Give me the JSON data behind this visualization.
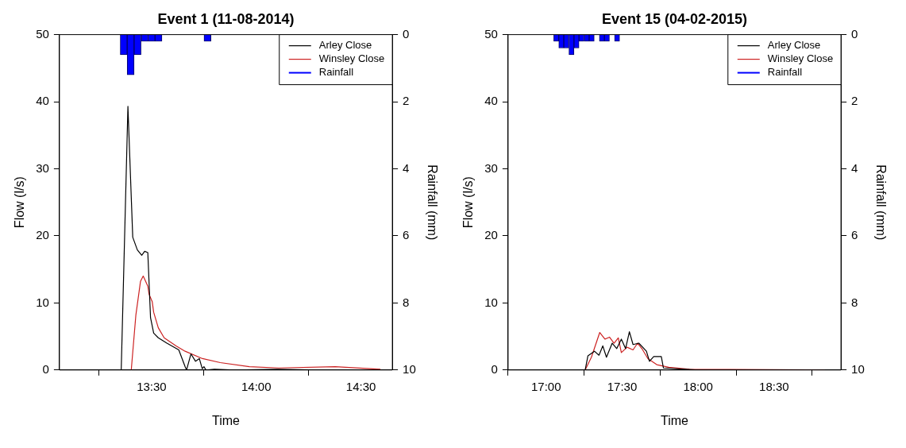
{
  "chart_data": [
    {
      "type": "line",
      "title": "Event 1 (11-08-2014)",
      "xlabel": "Time",
      "ylabel": "Flow (l/s)",
      "y2label": "Rainfall (mm)",
      "xlim": [
        13.06,
        14.65
      ],
      "xticks": [
        {
          "value": 13.5,
          "label": "13:30"
        },
        {
          "value": 14,
          "label": "14:00"
        },
        {
          "value": 14.5,
          "label": "14:30"
        }
      ],
      "ylim": [
        0,
        50
      ],
      "yticks": [
        0,
        10,
        20,
        30,
        40,
        50
      ],
      "y2lim": [
        10,
        0
      ],
      "y2ticks": [
        0,
        2,
        4,
        6,
        8,
        10
      ],
      "grid": false,
      "legend": "top right",
      "marker": "none",
      "line_style": "solid",
      "series": [
        {
          "name": "Arley Close",
          "color": "#000000",
          "x": [
            13.355,
            13.387,
            13.41,
            13.432,
            13.453,
            13.467,
            13.482,
            13.495,
            13.51,
            13.532,
            13.573,
            13.63,
            13.66,
            13.667,
            13.688,
            13.71,
            13.728,
            13.742,
            13.75,
            13.76,
            13.8,
            13.9,
            14.1,
            14.3,
            14.593
          ],
          "values": [
            0,
            39.3,
            19.8,
            17.9,
            17.1,
            17.7,
            17.5,
            7.8,
            5.5,
            4.8,
            4.0,
            3.0,
            0.5,
            0,
            2.4,
            1.3,
            1.7,
            0.2,
            0.5,
            0,
            0.1,
            0,
            0.1,
            0,
            0
          ]
        },
        {
          "name": "Winsley Close",
          "color": "#cc2222",
          "x": [
            13.403,
            13.425,
            13.447,
            13.46,
            13.482,
            13.488,
            13.503,
            13.51,
            13.532,
            13.56,
            13.617,
            13.66,
            13.743,
            13.828,
            13.967,
            14.108,
            14.377,
            14.593
          ],
          "values": [
            0,
            8.2,
            13.2,
            14.0,
            12.5,
            11.3,
            10.2,
            8.6,
            6.3,
            4.8,
            3.6,
            2.8,
            1.7,
            1.1,
            0.5,
            0.3,
            0.5,
            0.1
          ]
        },
        {
          "name": "Rainfall",
          "type": "bar",
          "axis": "y2",
          "color": "#0000ff",
          "x": [
            13.367,
            13.4,
            13.433,
            13.467,
            13.5,
            13.533,
            13.767
          ],
          "values": [
            0.6,
            1.2,
            0.6,
            0.2,
            0.2,
            0.2,
            0.2
          ]
        }
      ]
    },
    {
      "type": "line",
      "title": "Event 15 (04-02-2015)",
      "xlabel": "Time",
      "ylabel": "Flow (l/s)",
      "y2label": "Rainfall (mm)",
      "xlim": [
        16.75,
        18.94
      ],
      "xticks": [
        {
          "value": 17,
          "label": "17:00"
        },
        {
          "value": 17.5,
          "label": "17:30"
        },
        {
          "value": 18,
          "label": "18:00"
        },
        {
          "value": 18.5,
          "label": "18:30"
        }
      ],
      "ylim": [
        0,
        50
      ],
      "yticks": [
        0,
        10,
        20,
        30,
        40,
        50
      ],
      "y2lim": [
        10,
        0
      ],
      "y2ticks": [
        0,
        2,
        4,
        6,
        8,
        10
      ],
      "grid": false,
      "legend": "top right",
      "marker": "none",
      "line_style": "solid",
      "series": [
        {
          "name": "Arley Close",
          "color": "#000000",
          "x": [
            17.257,
            17.275,
            17.318,
            17.348,
            17.373,
            17.397,
            17.435,
            17.465,
            17.495,
            17.523,
            17.548,
            17.572,
            17.61,
            17.66,
            17.68,
            17.708,
            17.758,
            17.772,
            18.002,
            18.833
          ],
          "values": [
            0,
            2.1,
            2.8,
            2.2,
            3.6,
            1.9,
            4.0,
            3.2,
            4.6,
            3.2,
            5.7,
            3.8,
            4.0,
            2.8,
            1.3,
            2.0,
            2.0,
            0.3,
            0,
            0
          ]
        },
        {
          "name": "Winsley Close",
          "color": "#cc2222",
          "x": [
            17.257,
            17.298,
            17.353,
            17.387,
            17.417,
            17.447,
            17.475,
            17.495,
            17.533,
            17.572,
            17.602,
            17.63,
            17.67,
            17.728,
            17.807,
            17.943,
            18.833
          ],
          "values": [
            0,
            1.9,
            5.6,
            4.6,
            4.9,
            4.0,
            4.8,
            2.6,
            3.4,
            3.0,
            4.0,
            3.2,
            1.7,
            0.8,
            0.4,
            0.1,
            0
          ]
        },
        {
          "name": "Rainfall",
          "type": "bar",
          "axis": "y2",
          "color": "#0000ff",
          "x": [
            17.067,
            17.1,
            17.133,
            17.167,
            17.2,
            17.233,
            17.267,
            17.3,
            17.367,
            17.4,
            17.467
          ],
          "values": [
            0.2,
            0.4,
            0.4,
            0.6,
            0.4,
            0.2,
            0.2,
            0.2,
            0.2,
            0.2,
            0.2
          ]
        }
      ]
    }
  ]
}
